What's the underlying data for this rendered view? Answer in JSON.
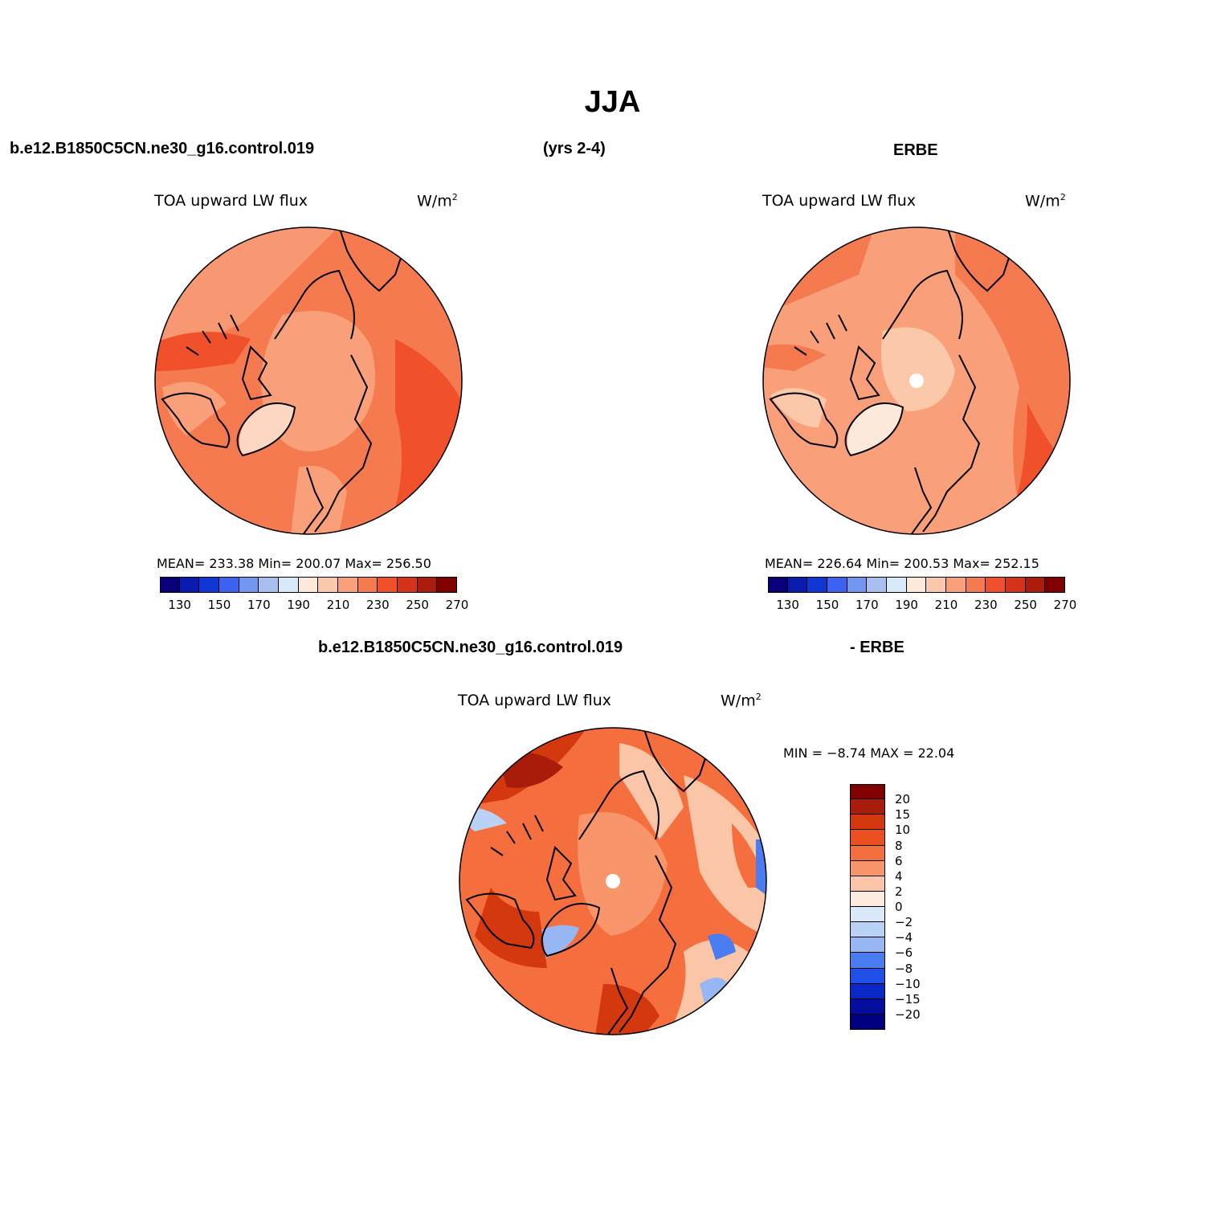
{
  "title": "JJA",
  "header": {
    "case": "b.e12.B1850C5CN.ne30_g16.control.019",
    "years": "(yrs 2-4)",
    "obs": "ERBE"
  },
  "diff_header": {
    "case": "b.e12.B1850C5CN.ne30_g16.control.019",
    "minus_obs": "- ERBE"
  },
  "panels": {
    "model": {
      "variable": "TOA upward LW flux",
      "units": "W/m",
      "units_sup": "2",
      "stats": "MEAN= 233.38   Min= 200.07   Max= 256.50"
    },
    "obs": {
      "variable": "TOA upward LW flux",
      "units": "W/m",
      "units_sup": "2",
      "stats": "MEAN= 226.64   Min= 200.53   Max= 252.15"
    },
    "diff": {
      "variable": "TOA upward LW flux",
      "units": "W/m",
      "units_sup": "2",
      "minmax": "MIN =   −8.74  MAX =   22.04"
    }
  },
  "colorbar_abs": {
    "colors": [
      "#08007a",
      "#0a1bb0",
      "#1036d6",
      "#3b62f0",
      "#7396f0",
      "#a8c0f0",
      "#d9e8fa",
      "#fde9da",
      "#fcc8aa",
      "#f9a07a",
      "#f57a50",
      "#f0502a",
      "#d5341a",
      "#ad1b0c",
      "#800000"
    ],
    "tick_labels": [
      "130",
      "150",
      "170",
      "190",
      "210",
      "230",
      "250",
      "270"
    ]
  },
  "colorbar_diff": {
    "colors": [
      "#800000",
      "#a91c0a",
      "#d3380f",
      "#ed5020",
      "#f56f3e",
      "#f8956a",
      "#fbc6a8",
      "#fdebe0",
      "#dae9fa",
      "#bbd2f7",
      "#96b7f4",
      "#4a7df1",
      "#1f4fe6",
      "#0a28c8",
      "#050e9c",
      "#000080"
    ],
    "labels": [
      "20",
      "15",
      "10",
      "8",
      "6",
      "4",
      "2",
      "0",
      "−2",
      "−4",
      "−6",
      "−8",
      "−10",
      "−15",
      "−20"
    ]
  }
}
